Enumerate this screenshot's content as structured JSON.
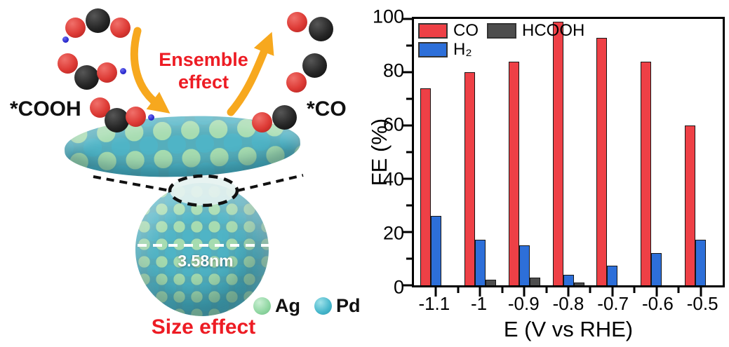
{
  "illustration": {
    "cooh_label": "*COOH",
    "co_label": "*CO",
    "ensemble_line1": "Ensemble",
    "ensemble_line2": "effect",
    "diameter_label": "3.58nm",
    "ag_label": "Ag",
    "pd_label": "Pd",
    "size_effect_label": "Size effect",
    "colors": {
      "ag_green": "#9ad8a8",
      "pd_teal": "#4cb2c4",
      "oxygen_red": "#dd3a35",
      "carbon_black": "#262626",
      "hydrogen_blue": "#2b2bd0",
      "arrow_orange": "#f7a81e",
      "accent_text_red": "#ed1c24"
    }
  },
  "chart_data": {
    "type": "bar",
    "title": "",
    "categories": [
      "-1.1",
      "-1",
      "-0.9",
      "-0.8",
      "-0.7",
      "-0.6",
      "-0.5"
    ],
    "series": [
      {
        "name": "CO",
        "color": "#ee4046",
        "values": [
          74,
          80,
          84,
          99,
          93,
          84,
          60
        ]
      },
      {
        "name": "H₂",
        "color": "#2d6fd9",
        "values": [
          26,
          17,
          15,
          4,
          7.5,
          12,
          17
        ]
      },
      {
        "name": "HCOOH",
        "color": "#4d4d4d",
        "values": [
          0,
          2,
          3,
          1,
          0,
          0,
          0
        ]
      }
    ],
    "xlabel": "E (V vs RHE)",
    "ylabel": "FE (%)",
    "ylim": [
      0,
      100
    ],
    "yticks": [
      0,
      20,
      40,
      60,
      80,
      100
    ],
    "yminor": [
      10,
      30,
      50,
      70,
      90
    ],
    "grid": false,
    "legend_position": "top-left"
  }
}
